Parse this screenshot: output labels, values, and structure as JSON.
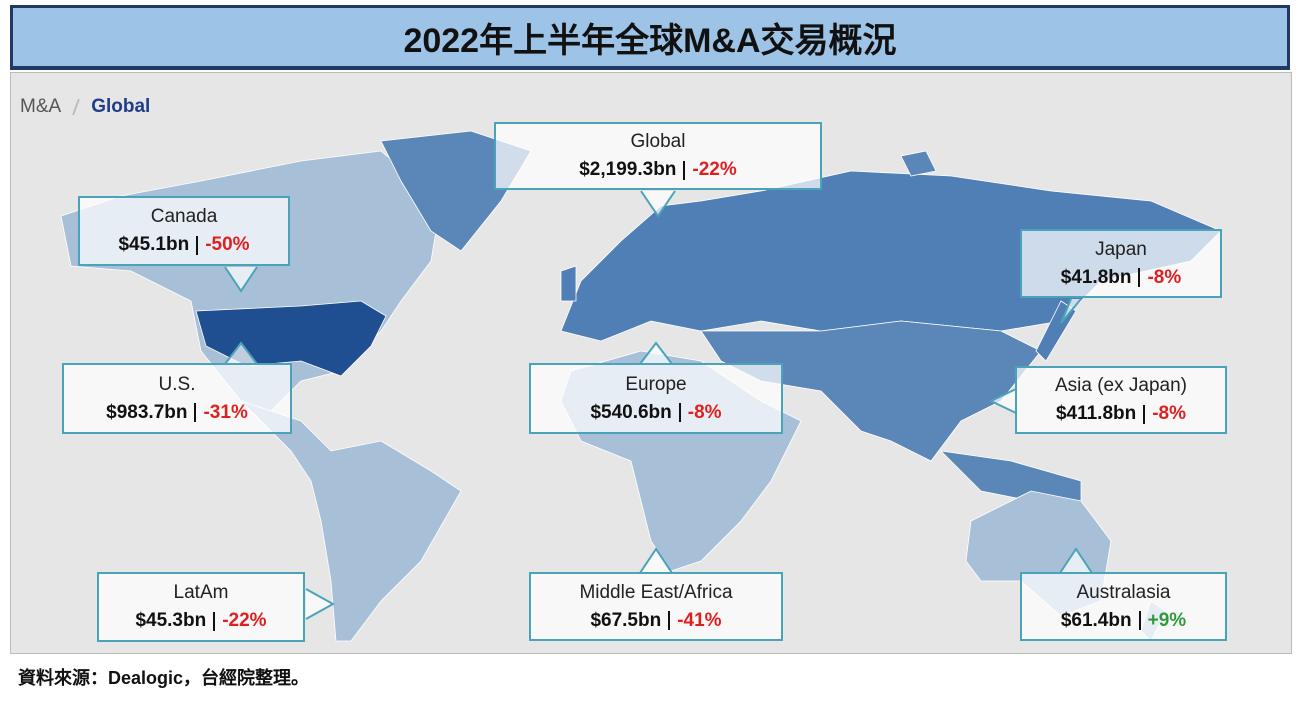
{
  "header": {
    "title": "2022年上半年全球M&A交易概況"
  },
  "breadcrumb": [
    "M&A",
    "Global"
  ],
  "regions": [
    {
      "name": "Global",
      "value": "$2,199.3bn",
      "change": "-22%",
      "color": "#e02020"
    },
    {
      "name": "Canada",
      "value": "$45.1bn",
      "change": "-50%",
      "color": "#e02020"
    },
    {
      "name": "Japan",
      "value": "$41.8bn",
      "change": "-8%",
      "color": "#e02020"
    },
    {
      "name": "U.S.",
      "value": "$983.7bn",
      "change": "-31%",
      "color": "#e02020"
    },
    {
      "name": "Europe",
      "value": "$540.6bn",
      "change": "-8%",
      "color": "#e02020"
    },
    {
      "name": "Asia (ex Japan)",
      "value": "$411.8bn",
      "change": "-8%",
      "color": "#e02020"
    },
    {
      "name": "LatAm",
      "value": "$45.3bn",
      "change": "-22%",
      "color": "#e02020"
    },
    {
      "name": "Middle East/Africa",
      "value": "$67.5bn",
      "change": "-41%",
      "color": "#e02020"
    },
    {
      "name": "Australasia",
      "value": "$61.4bn",
      "change": "+9%",
      "color": "#2e9a3a"
    }
  ],
  "source": "資料來源：Dealogic，台經院整理。"
}
